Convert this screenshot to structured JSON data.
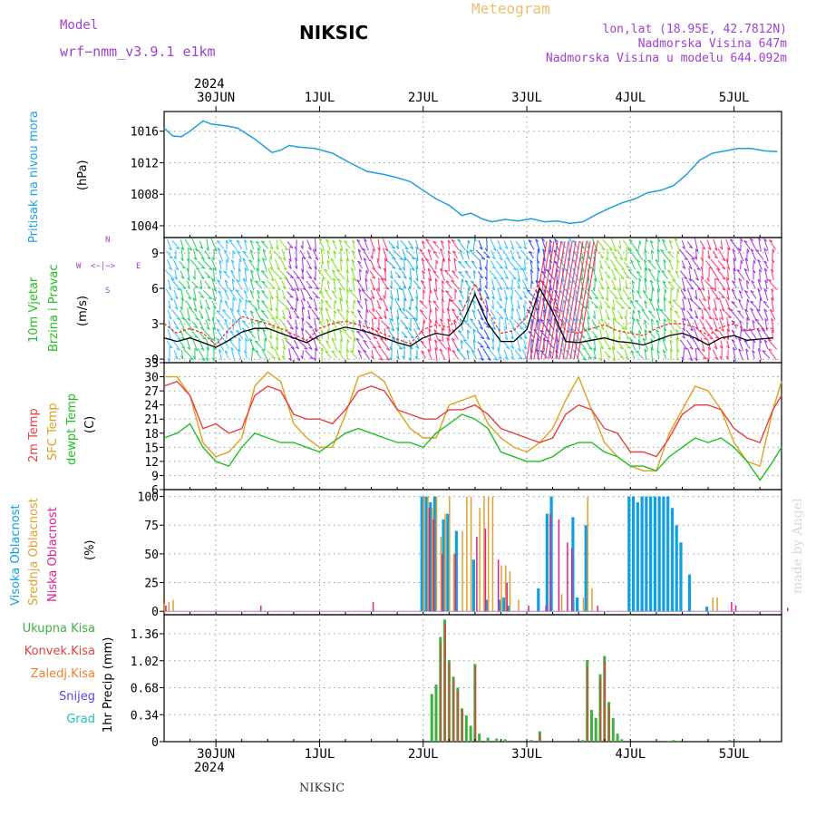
{
  "header": {
    "model_label": "Model",
    "model_name": "wrf−nmm_v3.9.1  e1km",
    "station": "NIKSIC",
    "title": "Meteogram",
    "location": "lon,lat (18.95E, 42.7812N)",
    "elevation": "Nadmorska Visina 647m",
    "model_elevation": "Nadmorska Visina u modelu 644.092m",
    "year_top": "2024",
    "year_bottom": "2024",
    "footer_station": "NIKSIC",
    "credit": "made by Angel"
  },
  "colors": {
    "pressure": "#1ea0e0",
    "wind_speed": "#000000",
    "wind_gust": "#ff2020",
    "temp_2m": "#e84040",
    "temp_sfc": "#e0a020",
    "dewpoint": "#20c020",
    "cloud_high": "#10a0e0",
    "cloud_mid": "#e0a030",
    "cloud_low": "#e02090",
    "precip_total": "#40b040",
    "precip_conv": "#e04040",
    "precip_frz": "#f08030",
    "precip_snow": "#6040e0",
    "precip_hail": "#20c0c0"
  },
  "time_axis": {
    "day_labels": [
      "30JUN",
      "1JUL",
      "2JUL",
      "3JUL",
      "4JUL",
      "5JUL"
    ],
    "start_hour": -12,
    "end_hour": 131
  },
  "wind_compass": {
    "n": "N",
    "s": "S",
    "w": "W",
    "e": "E",
    "arrows": "<−|−>"
  },
  "chart_data": [
    {
      "type": "line",
      "panel": "pressure",
      "ylabel_name": "Pritisak na nivou mora",
      "ylabel_unit": "(hPa)",
      "ylim": [
        1002.5,
        1018.5
      ],
      "yticks": [
        1004,
        1008,
        1012,
        1016
      ],
      "grid": true,
      "x_hours": [
        -12,
        -10,
        -8,
        -6,
        -3,
        -1,
        2,
        5,
        9,
        13,
        15,
        17,
        19,
        23,
        27,
        31,
        35,
        39,
        42,
        45,
        48,
        51,
        54,
        57,
        59,
        62,
        64,
        67,
        70,
        73,
        76,
        79,
        82,
        85,
        88,
        91,
        94,
        97,
        100,
        103,
        106,
        109,
        112,
        115,
        118,
        121,
        124,
        127,
        130
      ],
      "values": [
        1016.4,
        1015.4,
        1015.3,
        1016.0,
        1017.3,
        1016.9,
        1016.7,
        1016.4,
        1015.0,
        1013.3,
        1013.6,
        1014.2,
        1014.0,
        1013.8,
        1013.2,
        1012.0,
        1010.9,
        1010.5,
        1010.1,
        1009.6,
        1008.5,
        1007.4,
        1006.6,
        1005.3,
        1005.6,
        1004.8,
        1004.5,
        1004.8,
        1004.6,
        1004.9,
        1004.5,
        1004.6,
        1004.3,
        1004.5,
        1005.4,
        1006.2,
        1006.9,
        1007.4,
        1008.2,
        1008.5,
        1009.1,
        1010.5,
        1012.3,
        1013.2,
        1013.5,
        1013.8,
        1013.8,
        1013.5,
        1013.4
      ]
    },
    {
      "type": "line",
      "panel": "wind",
      "ylabel_name": "10m Vjetar",
      "ylabel_name2": "Brzina i Pravac",
      "ylabel_unit": "(m/s)",
      "ylim": [
        -0.3,
        10.3
      ],
      "yticks": [
        0,
        3,
        6,
        9
      ],
      "grid": true,
      "x_hours": [
        -12,
        -9,
        -6,
        -3,
        0,
        3,
        6,
        9,
        12,
        15,
        18,
        21,
        24,
        27,
        30,
        33,
        36,
        39,
        42,
        45,
        48,
        51,
        54,
        57,
        60,
        63,
        66,
        69,
        72,
        75,
        78,
        81,
        84,
        87,
        90,
        93,
        96,
        99,
        102,
        105,
        108,
        111,
        114,
        117,
        120,
        123,
        126,
        129
      ],
      "series": [
        {
          "values": [
            1.8,
            1.5,
            1.8,
            1.4,
            1.0,
            1.6,
            2.3,
            2.6,
            2.6,
            2.2,
            1.8,
            1.4,
            2.0,
            2.4,
            2.7,
            2.5,
            2.2,
            1.8,
            1.4,
            1.1,
            1.8,
            2.2,
            2.0,
            3.0,
            5.5,
            3.0,
            1.5,
            1.5,
            2.5,
            6.0,
            4.0,
            1.5,
            1.4,
            1.6,
            1.8,
            1.5,
            1.4,
            1.2,
            1.6,
            2.0,
            2.2,
            1.8,
            1.2,
            1.8,
            2.0,
            1.6,
            1.7,
            1.8
          ]
        },
        {
          "values": [
            3.0,
            2.2,
            2.6,
            2.2,
            1.2,
            2.5,
            3.6,
            3.3,
            3.0,
            2.6,
            2.1,
            1.6,
            2.6,
            3.0,
            3.2,
            2.9,
            2.6,
            2.1,
            1.7,
            1.3,
            2.5,
            2.9,
            2.7,
            4.0,
            6.4,
            4.0,
            2.2,
            2.4,
            3.6,
            6.8,
            5.0,
            2.4,
            2.2,
            2.6,
            2.9,
            2.4,
            2.2,
            2.0,
            2.6,
            3.0,
            3.0,
            2.7,
            2.0,
            2.7,
            3.0,
            2.4,
            2.6,
            2.6
          ]
        }
      ]
    },
    {
      "type": "line",
      "panel": "temperature",
      "ylabel_names": [
        "2m Temp",
        "SFC Temp",
        "dewpt Temp"
      ],
      "ylabel_unit": "(C)",
      "ylim": [
        6,
        33
      ],
      "yticks": [
        6,
        9,
        12,
        15,
        18,
        21,
        24,
        27,
        30,
        33
      ],
      "grid": true,
      "x_hours": [
        -12,
        -9,
        -6,
        -3,
        0,
        3,
        6,
        9,
        12,
        15,
        18,
        21,
        24,
        27,
        30,
        33,
        36,
        39,
        42,
        45,
        48,
        51,
        54,
        57,
        60,
        63,
        66,
        69,
        72,
        75,
        78,
        81,
        84,
        87,
        90,
        93,
        96,
        99,
        102,
        105,
        108,
        111,
        114,
        117,
        120,
        123,
        126,
        129,
        131
      ],
      "series": [
        {
          "name": "2m Temp",
          "values": [
            28,
            29,
            26,
            19,
            20,
            18,
            19,
            26,
            28,
            27,
            22,
            21,
            21,
            20,
            23,
            27,
            28,
            27,
            23,
            22,
            21,
            21,
            23,
            23,
            24,
            22,
            19,
            18,
            17,
            16,
            17,
            22,
            24,
            23,
            19,
            18,
            14,
            14,
            13,
            17,
            22,
            24,
            24,
            23,
            19,
            17,
            16,
            23,
            26
          ]
        },
        {
          "name": "SFC Temp",
          "values": [
            30,
            30,
            26,
            16,
            13,
            14,
            17,
            28,
            31,
            29,
            20,
            17,
            15,
            15,
            22,
            30,
            31,
            29,
            23,
            19,
            17,
            17,
            24,
            25,
            26,
            20,
            17,
            15,
            14,
            16,
            19,
            25,
            30,
            23,
            16,
            13,
            11,
            10,
            10,
            18,
            23,
            28,
            27,
            23,
            16,
            12,
            11,
            23,
            29
          ]
        },
        {
          "name": "dewpt Temp",
          "values": [
            17,
            18,
            20,
            15,
            12,
            11,
            15,
            18,
            17,
            16,
            16,
            15,
            14,
            16,
            18,
            19,
            18,
            17,
            16,
            16,
            15,
            18,
            20,
            22,
            21,
            19,
            14,
            13,
            12,
            12,
            13,
            15,
            16,
            16,
            14,
            13,
            11,
            11,
            10,
            13,
            15,
            17,
            16,
            17,
            15,
            12,
            8,
            12,
            15
          ]
        }
      ]
    },
    {
      "type": "bar",
      "panel": "clouds",
      "ylabel_names": [
        "Visoka Oblacnost",
        "Srednja Oblacnost",
        "Niska Oblacnost"
      ],
      "ylabel_unit": "(%)",
      "ylim": [
        -3,
        106
      ],
      "yticks": [
        0,
        25,
        50,
        75,
        100
      ],
      "grid": true,
      "series": [
        {
          "name": "Visoka Oblacnost",
          "x_hours": [
            48,
            49,
            50,
            51,
            53,
            54,
            56,
            60,
            63,
            66,
            67,
            68,
            75,
            77,
            78,
            83,
            84,
            86,
            96,
            97,
            98,
            99,
            100,
            101,
            102,
            103,
            104,
            105,
            106,
            107,
            108,
            110,
            114
          ],
          "values": [
            100,
            100,
            95,
            100,
            80,
            85,
            70,
            45,
            10,
            10,
            12,
            5,
            20,
            85,
            100,
            82,
            12,
            75,
            100,
            100,
            95,
            100,
            100,
            100,
            100,
            100,
            100,
            100,
            90,
            75,
            60,
            32,
            4
          ]
        },
        {
          "name": "Srednja Oblacnost",
          "x_hours": [
            -12,
            -11,
            -10,
            48,
            49,
            50,
            51,
            52,
            53,
            54,
            55,
            57,
            58,
            59,
            61,
            62,
            63,
            64,
            66,
            67,
            68,
            70,
            80,
            85,
            86,
            87,
            115,
            116
          ],
          "values": [
            7,
            8,
            10,
            100,
            100,
            90,
            100,
            65,
            85,
            100,
            50,
            70,
            100,
            100,
            90,
            100,
            100,
            100,
            40,
            40,
            35,
            10,
            15,
            12,
            100,
            20,
            12,
            12
          ]
        },
        {
          "name": "Niska Oblacnost",
          "x_hours": [
            -12,
            10,
            36,
            49,
            50,
            52,
            55,
            60,
            62,
            65,
            67,
            72,
            76,
            77,
            79,
            81,
            82,
            88,
            119,
            120,
            132
          ],
          "values": [
            5,
            5,
            8,
            90,
            80,
            50,
            50,
            65,
            72,
            45,
            25,
            5,
            5,
            85,
            80,
            60,
            55,
            5,
            8,
            5,
            3
          ]
        }
      ]
    },
    {
      "type": "bar",
      "panel": "precipitation",
      "ylabel_names": [
        "Ukupna Kisa",
        "Konvek.Kisa",
        "Zaledj.Kisa",
        "Snijeg",
        "Grad"
      ],
      "ylabel_unit": "1hr Precip (mm)",
      "ylim": [
        0,
        1.6
      ],
      "yticks": [
        0,
        0.34,
        0.68,
        1.02,
        1.36
      ],
      "grid": true,
      "series": [
        {
          "name": "Ukupna Kisa",
          "x_hours": [
            50,
            51,
            52,
            53,
            54,
            55,
            56,
            57,
            58,
            59,
            60,
            61,
            63,
            65,
            67,
            73,
            75,
            84,
            85,
            86,
            87,
            88,
            89,
            90,
            91,
            92,
            93,
            94,
            105,
            106,
            107,
            119
          ],
          "values": [
            0.6,
            0.72,
            1.32,
            1.54,
            1.03,
            0.82,
            0.68,
            0.42,
            0.33,
            0.2,
            0.98,
            0.1,
            0.05,
            0.04,
            0.03,
            0.02,
            0.13,
            0.01,
            0.02,
            1.03,
            0.4,
            0.3,
            0.85,
            1.08,
            0.5,
            0.3,
            0.1,
            0.03,
            0.01,
            0.02,
            0.01,
            0.02
          ]
        },
        {
          "name": "Konvek.Kisa",
          "x_hours": [
            52,
            53,
            54,
            55,
            56,
            57,
            60,
            75,
            86,
            89,
            90,
            91
          ],
          "values": [
            1.25,
            1.48,
            0.98,
            0.78,
            0.64,
            0.4,
            0.95,
            0.1,
            0.95,
            0.8,
            1.02,
            0.45
          ]
        }
      ]
    }
  ]
}
